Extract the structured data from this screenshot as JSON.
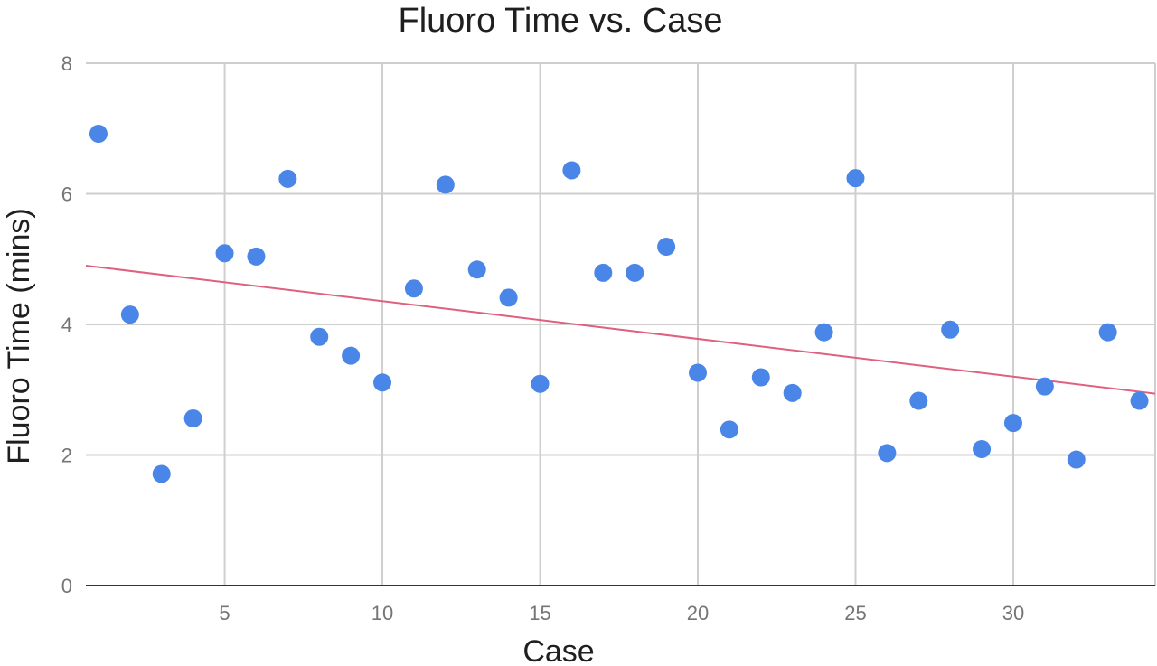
{
  "chart_data": {
    "type": "scatter",
    "title": "Fluoro Time vs. Case",
    "xlabel": "Case",
    "ylabel": "Fluoro Time (mins)",
    "xlim": [
      0.6,
      34.5
    ],
    "ylim": [
      0,
      8
    ],
    "xticks": [
      5,
      10,
      15,
      20,
      25,
      30
    ],
    "yticks": [
      0,
      2,
      4,
      6,
      8
    ],
    "grid": true,
    "legend": "none",
    "colors": {
      "points": "#4a86e8",
      "trendline": "#e06080"
    },
    "series": [
      {
        "x": [
          1,
          2,
          3,
          4,
          5,
          6,
          7,
          8,
          9,
          10,
          11,
          12,
          13,
          14,
          15,
          16,
          17,
          18,
          19,
          20,
          21,
          22,
          23,
          24,
          25,
          26,
          27,
          28,
          29,
          30,
          31,
          32,
          33,
          34
        ],
        "y": [
          6.92,
          4.15,
          1.71,
          2.56,
          5.09,
          5.04,
          6.23,
          3.81,
          3.52,
          3.11,
          4.55,
          6.14,
          4.84,
          4.41,
          3.09,
          6.36,
          4.79,
          4.79,
          5.19,
          3.26,
          2.39,
          3.19,
          2.95,
          3.88,
          6.24,
          2.03,
          2.83,
          3.92,
          2.09,
          2.49,
          3.05,
          1.93,
          3.88,
          2.83
        ]
      }
    ],
    "trendline": {
      "x": [
        0.6,
        34.5
      ],
      "y": [
        4.9,
        2.94
      ]
    }
  }
}
